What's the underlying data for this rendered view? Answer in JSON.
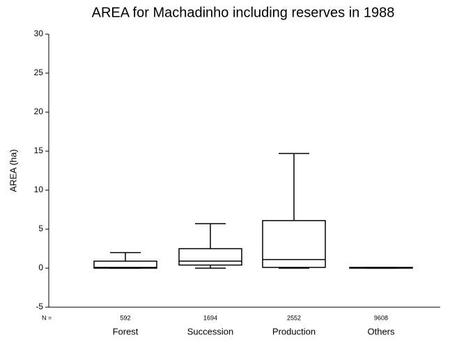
{
  "chart_data": {
    "type": "box",
    "title": "AREA for Machadinho including reserves in 1988",
    "ylabel": "AREA (ha)",
    "n_label": "N =",
    "categories": [
      "Forest",
      "Succession",
      "Production",
      "Others"
    ],
    "counts": [
      592,
      1694,
      2552,
      9608
    ],
    "boxes": [
      {
        "whislo": 0,
        "q1": 0,
        "med": 0.1,
        "q3": 0.9,
        "whishi": 2.0
      },
      {
        "whislo": 0,
        "q1": 0.4,
        "med": 0.9,
        "q3": 2.5,
        "whishi": 5.7
      },
      {
        "whislo": 0,
        "q1": 0.1,
        "med": 1.1,
        "q3": 6.1,
        "whishi": 14.7
      },
      {
        "whislo": 0,
        "q1": 0,
        "med": 0.05,
        "q3": 0.1,
        "whishi": 0.1
      }
    ],
    "color": "#ffffff",
    "ylim": [
      -5,
      30
    ],
    "yticks": [
      -5,
      0,
      5,
      10,
      15,
      20,
      25,
      30
    ]
  }
}
